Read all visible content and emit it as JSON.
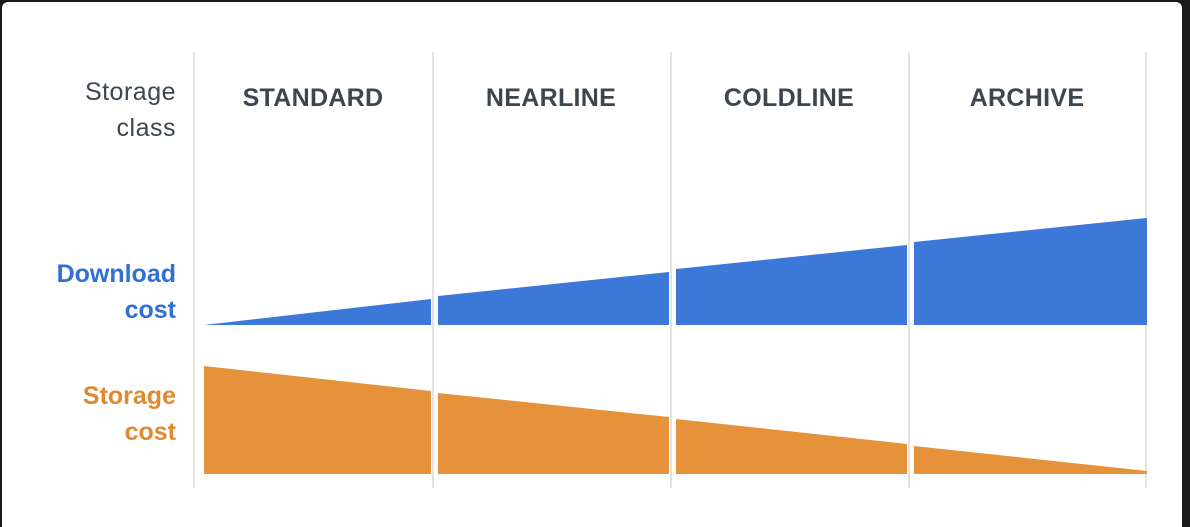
{
  "row_labels": {
    "storage_class_line1": "Storage",
    "storage_class_line2": "class",
    "download_cost_line1": "Download",
    "download_cost_line2": "cost",
    "storage_cost_line1": "Storage",
    "storage_cost_line2": "cost"
  },
  "storage_classes": [
    {
      "label": "STANDARD"
    },
    {
      "label": "NEARLINE"
    },
    {
      "label": "COLDLINE"
    },
    {
      "label": "ARCHIVE"
    }
  ],
  "colors": {
    "download_cost": "#3b78d8",
    "storage_cost": "#e6923a",
    "row_label_text": "#3b4650",
    "divider": "#d9d9d9"
  },
  "trends": {
    "download_cost": "increasing",
    "storage_cost": "decreasing"
  }
}
